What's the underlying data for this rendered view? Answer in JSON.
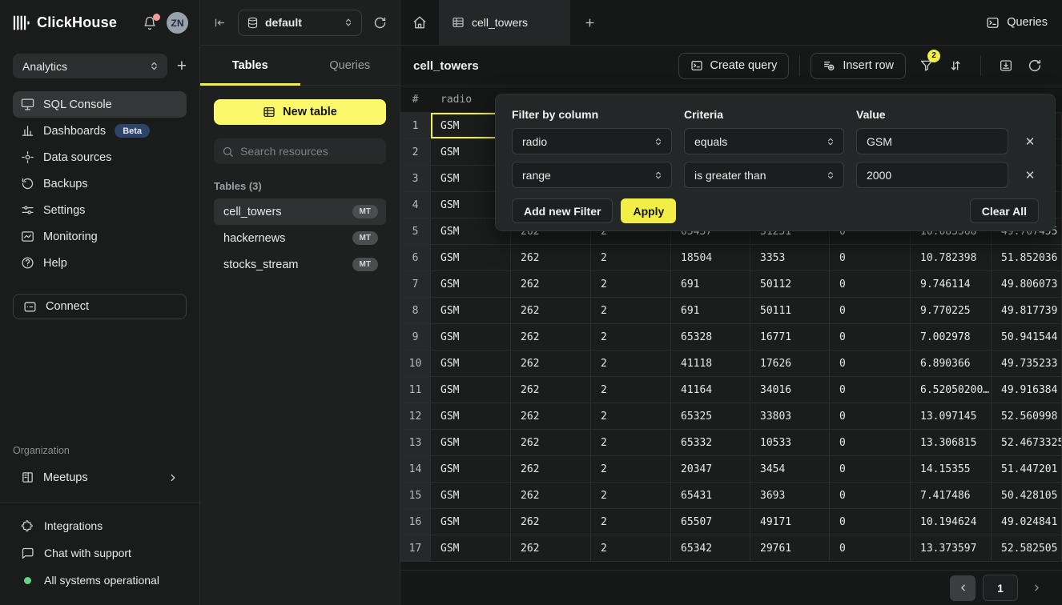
{
  "app": {
    "brand": "ClickHouse",
    "avatar_initials": "ZN"
  },
  "colors": {
    "accent_yellow": "#F1EE46",
    "button_yellow": "#FBF86B",
    "beta_badge_bg": "#2E4369",
    "status_green": "#62D87E",
    "notification_red": "#F39B9B",
    "selected_cell_border": "#F1EE46"
  },
  "icons": [
    "clickhouse-logo",
    "bell",
    "chevron-updown",
    "plus",
    "sql-console",
    "dashboards",
    "data-sources",
    "backups",
    "settings",
    "monitoring",
    "help",
    "connect",
    "meetups",
    "chevron-right",
    "integrations",
    "chat",
    "status-dot",
    "collapse-left",
    "database",
    "refresh",
    "table",
    "search",
    "home",
    "terminal",
    "insert-row",
    "funnel",
    "sort",
    "download",
    "close-x",
    "chevron-left"
  ],
  "sidebar": {
    "org_select": "Analytics",
    "nav": [
      {
        "label": "SQL Console",
        "active": true
      },
      {
        "label": "Dashboards",
        "active": false,
        "badge": "Beta"
      },
      {
        "label": "Data sources",
        "active": false
      },
      {
        "label": "Backups",
        "active": false
      },
      {
        "label": "Settings",
        "active": false
      },
      {
        "label": "Monitoring",
        "active": false
      },
      {
        "label": "Help",
        "active": false
      }
    ],
    "connect_label": "Connect",
    "organization_label": "Organization",
    "meetups_label": "Meetups",
    "footer": {
      "integrations": "Integrations",
      "chat": "Chat with support",
      "status": "All systems operational"
    }
  },
  "explorer": {
    "database_select": "default",
    "tabs": [
      {
        "label": "Tables",
        "active": true
      },
      {
        "label": "Queries",
        "active": false
      }
    ],
    "new_table_label": "New table",
    "search_placeholder": "Search resources",
    "section_label": "Tables (3)",
    "tables": [
      {
        "name": "cell_towers",
        "badge": "MT",
        "selected": true
      },
      {
        "name": "hackernews",
        "badge": "MT",
        "selected": false
      },
      {
        "name": "stocks_stream",
        "badge": "MT",
        "selected": false
      }
    ]
  },
  "main": {
    "tab_label": "cell_towers",
    "queries_label": "Queries",
    "toolbar": {
      "title": "cell_towers",
      "create_query": "Create query",
      "insert_row": "Insert row",
      "filter_badge": "2"
    },
    "grid": {
      "row_header": "#",
      "first_column": "radio",
      "rows": [
        {
          "n": 1,
          "cells": [
            "GSM",
            "",
            "",
            "",
            "",
            "",
            "",
            ""
          ]
        },
        {
          "n": 2,
          "cells": [
            "GSM",
            "",
            "",
            "",
            "",
            "",
            "",
            ""
          ]
        },
        {
          "n": 3,
          "cells": [
            "GSM",
            "",
            "",
            "",
            "",
            "",
            "",
            ""
          ]
        },
        {
          "n": 4,
          "cells": [
            "GSM",
            "",
            "",
            "",
            "",
            "",
            "",
            ""
          ]
        },
        {
          "n": 5,
          "cells": [
            "GSM",
            "262",
            "2",
            "65437",
            "31251",
            "0",
            "10.083568",
            "49.767455"
          ]
        },
        {
          "n": 6,
          "cells": [
            "GSM",
            "262",
            "2",
            "18504",
            "3353",
            "0",
            "10.782398",
            "51.852036"
          ]
        },
        {
          "n": 7,
          "cells": [
            "GSM",
            "262",
            "2",
            "691",
            "50112",
            "0",
            "9.746114",
            "49.806073"
          ]
        },
        {
          "n": 8,
          "cells": [
            "GSM",
            "262",
            "2",
            "691",
            "50111",
            "0",
            "9.770225",
            "49.817739"
          ]
        },
        {
          "n": 9,
          "cells": [
            "GSM",
            "262",
            "2",
            "65328",
            "16771",
            "0",
            "7.002978",
            "50.941544"
          ]
        },
        {
          "n": 10,
          "cells": [
            "GSM",
            "262",
            "2",
            "41118",
            "17626",
            "0",
            "6.890366",
            "49.735233"
          ]
        },
        {
          "n": 11,
          "cells": [
            "GSM",
            "262",
            "2",
            "41164",
            "34016",
            "0",
            "6.52050200…",
            "49.916384"
          ]
        },
        {
          "n": 12,
          "cells": [
            "GSM",
            "262",
            "2",
            "65325",
            "33803",
            "0",
            "13.097145",
            "52.560998"
          ]
        },
        {
          "n": 13,
          "cells": [
            "GSM",
            "262",
            "2",
            "65332",
            "10533",
            "0",
            "13.306815",
            "52.4673325"
          ]
        },
        {
          "n": 14,
          "cells": [
            "GSM",
            "262",
            "2",
            "20347",
            "3454",
            "0",
            "14.15355",
            "51.447201"
          ]
        },
        {
          "n": 15,
          "cells": [
            "GSM",
            "262",
            "2",
            "65431",
            "3693",
            "0",
            "7.417486",
            "50.428105"
          ]
        },
        {
          "n": 16,
          "cells": [
            "GSM",
            "262",
            "2",
            "65507",
            "49171",
            "0",
            "10.194624",
            "49.024841"
          ]
        },
        {
          "n": 17,
          "cells": [
            "GSM",
            "262",
            "2",
            "65342",
            "29761",
            "0",
            "13.373597",
            "52.582505"
          ]
        }
      ]
    },
    "filter_panel": {
      "column_label": "Filter by column",
      "criteria_label": "Criteria",
      "value_label": "Value",
      "filters": [
        {
          "column": "radio",
          "criteria": "equals",
          "value": "GSM"
        },
        {
          "column": "range",
          "criteria": "is greater than",
          "value": "2000"
        }
      ],
      "add_label": "Add new Filter",
      "apply_label": "Apply",
      "clear_label": "Clear All"
    },
    "pagination": {
      "page": "1"
    }
  }
}
